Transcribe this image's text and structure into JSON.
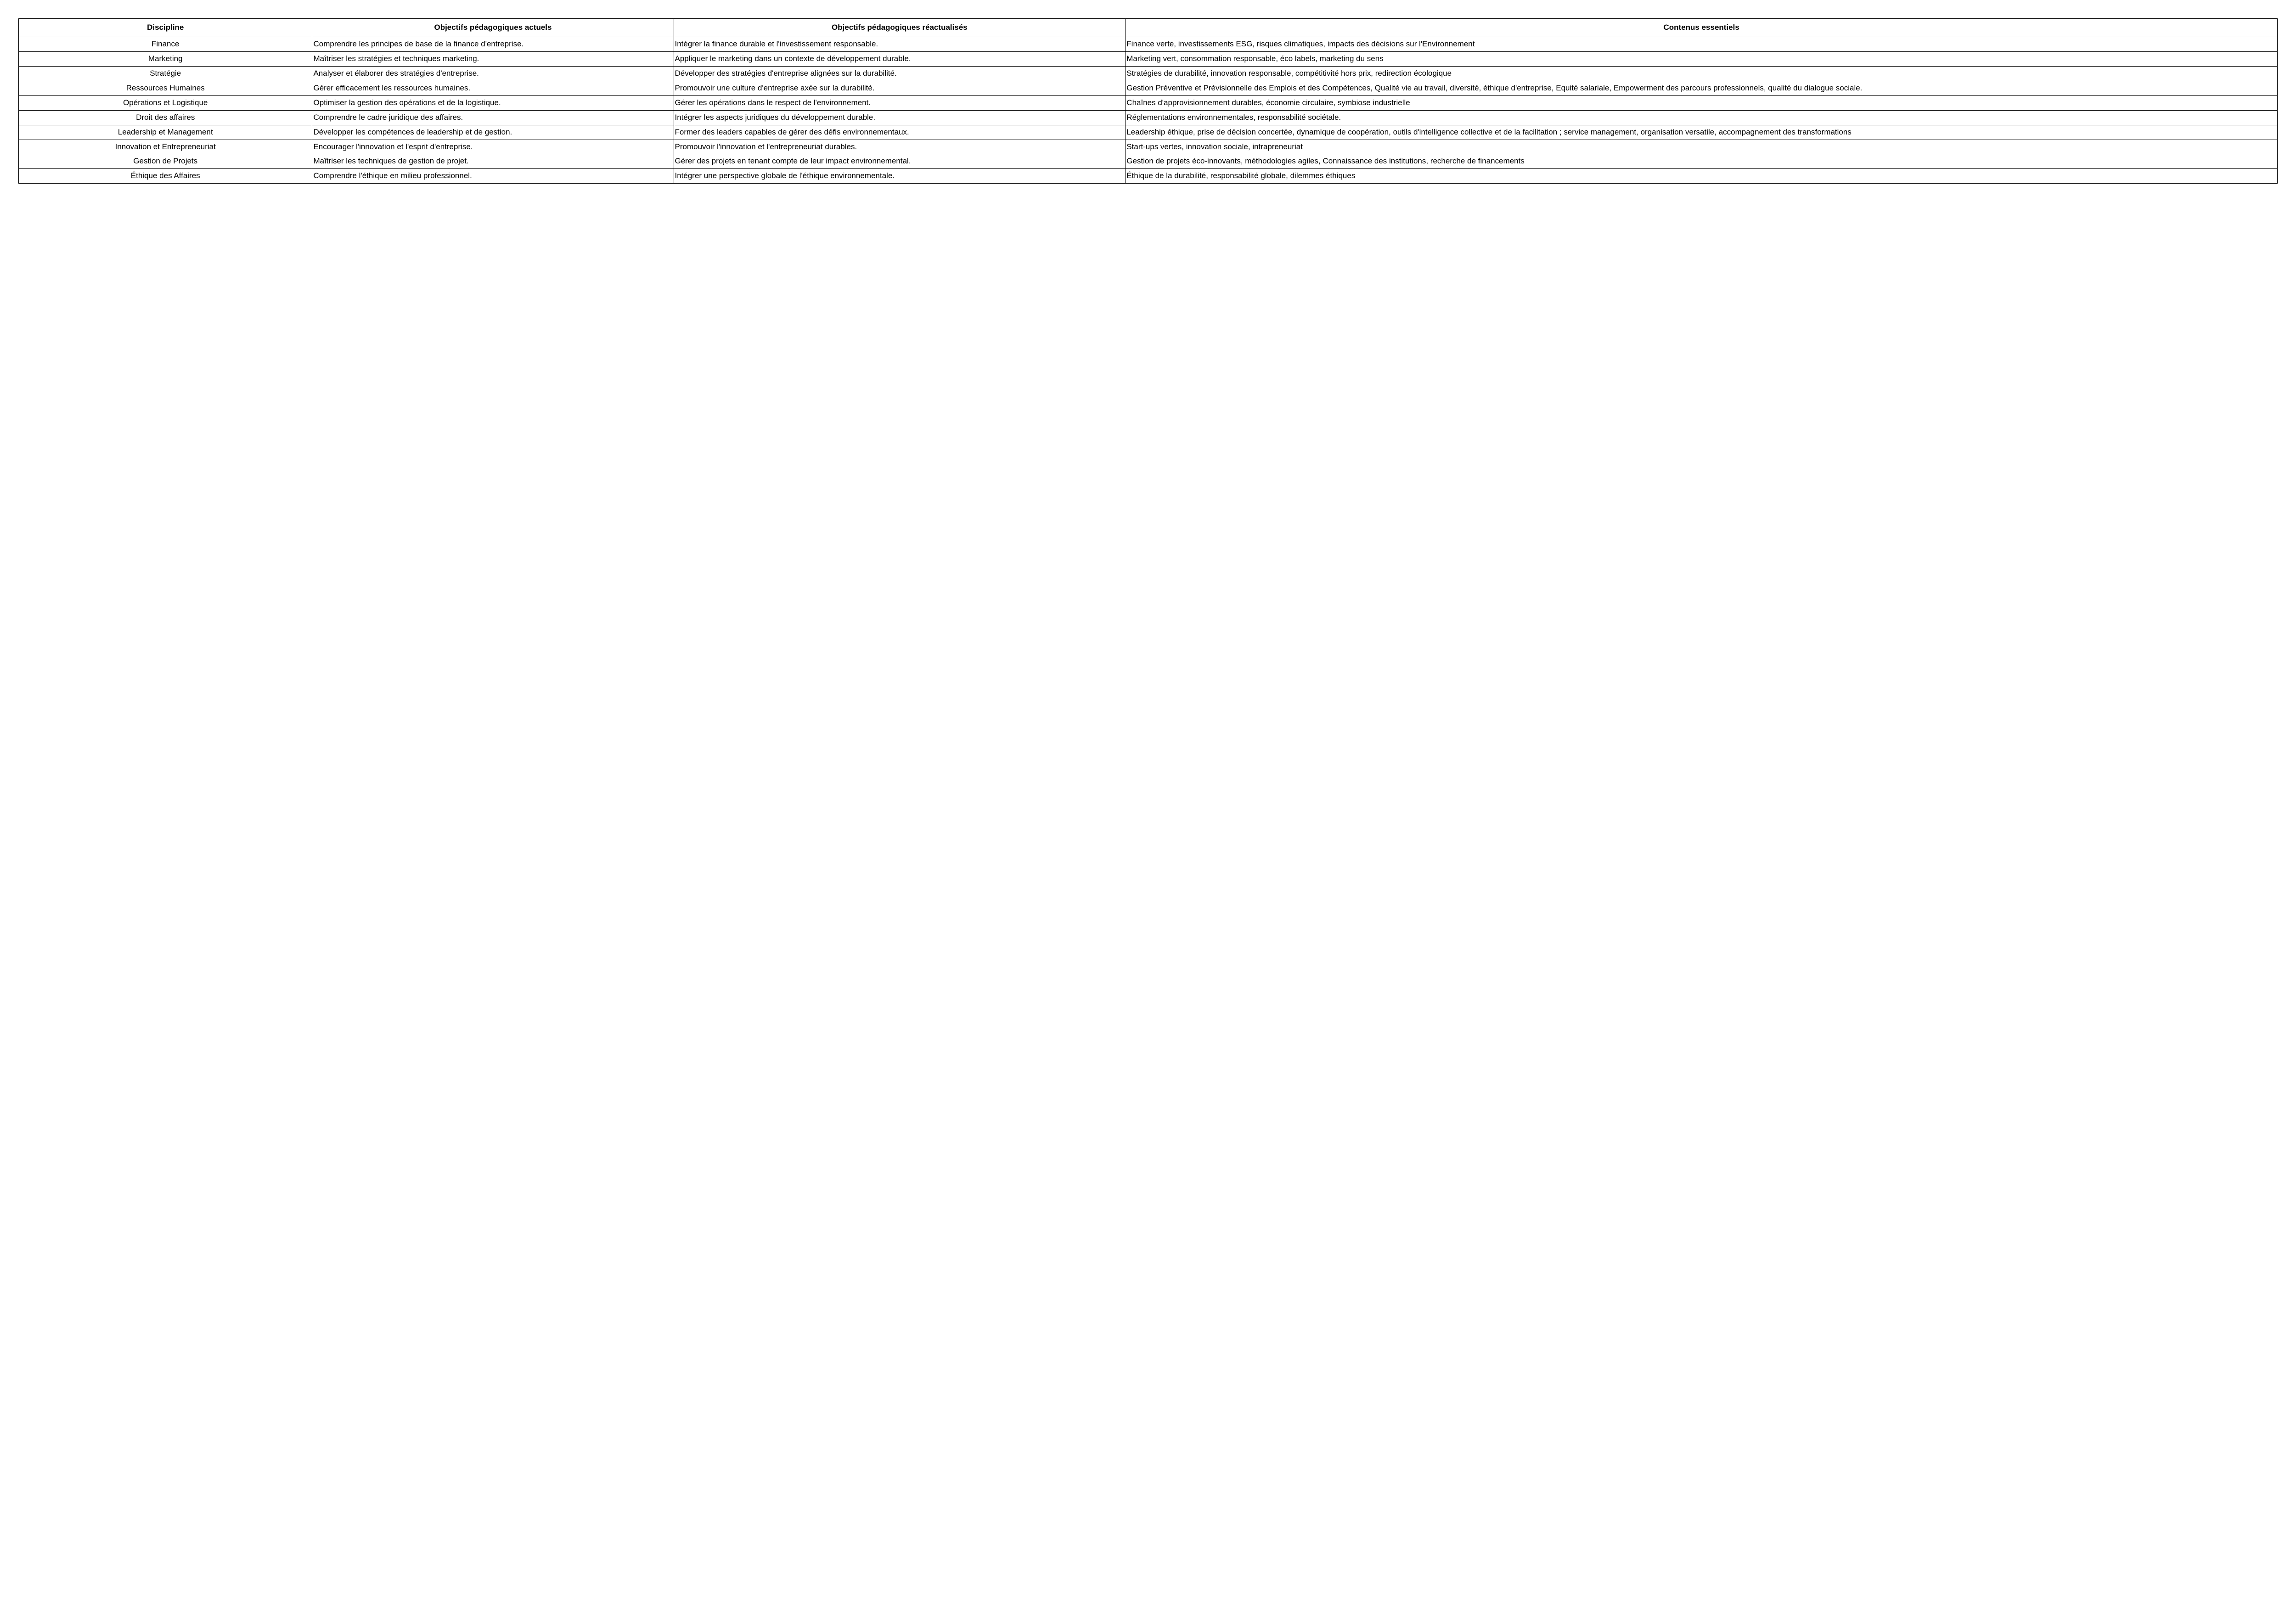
{
  "table": {
    "columns": [
      "Discipline",
      "Objectifs pédagogiques actuels",
      "Objectifs pédagogiques réactualisés",
      "Contenus essentiels"
    ],
    "rows": [
      {
        "discipline": "Finance",
        "current": "Comprendre les principes de base de la finance d'entreprise.",
        "updated": "Intégrer la finance durable et l'investissement responsable.",
        "content": "Finance verte, investissements ESG, risques climatiques, impacts des décisions sur l'Environnement"
      },
      {
        "discipline": "Marketing",
        "current": "Maîtriser les stratégies et techniques marketing.",
        "updated": "Appliquer le marketing dans un contexte de développement durable.",
        "content": "Marketing vert, consommation responsable, éco labels, marketing du sens"
      },
      {
        "discipline": "Stratégie",
        "current": "Analyser et élaborer des stratégies d'entreprise.",
        "updated": "Développer des stratégies d'entreprise alignées sur la durabilité.",
        "content": "Stratégies de durabilité, innovation responsable, compétitivité hors prix, redirection écologique"
      },
      {
        "discipline": "Ressources Humaines",
        "current": "Gérer efficacement les ressources humaines.",
        "updated": "Promouvoir une culture d'entreprise axée sur la durabilité.",
        "content": "Gestion Préventive et Prévisionnelle des Emplois et des Compétences, Qualité vie au travail, diversité, éthique d'entreprise, Equité salariale, Empowerment des parcours professionnels, qualité du dialogue sociale."
      },
      {
        "discipline": "Opérations et Logistique",
        "current": "Optimiser la gestion des opérations et de la logistique.",
        "updated": "Gérer les opérations dans le respect de l'environnement.",
        "content": "Chaînes d'approvisionnement durables, économie circulaire, symbiose industrielle"
      },
      {
        "discipline": "Droit des affaires",
        "current": "Comprendre le cadre juridique des affaires.",
        "updated": "Intégrer les aspects juridiques du développement durable.",
        "content": "Réglementations environnementales, responsabilité sociétale."
      },
      {
        "discipline": "Leadership et Management",
        "current": "Développer les compétences de leadership et de gestion.",
        "updated": "Former des leaders capables de gérer des défis environnementaux.",
        "content": "Leadership éthique, prise de décision concertée, dynamique de coopération, outils d'intelligence collective et de la facilitation ; service management, organisation versatile, accompagnement des transformations"
      },
      {
        "discipline": "Innovation et Entrepreneuriat",
        "current": "Encourager l'innovation et l'esprit d'entreprise.",
        "updated": "Promouvoir l'innovation et l'entrepreneuriat durables.",
        "content": "Start-ups vertes, innovation sociale, intrapreneuriat"
      },
      {
        "discipline": "Gestion de Projets",
        "current": "Maîtriser les techniques de gestion de projet.",
        "updated": "Gérer des projets en tenant compte de leur impact environnemental.",
        "content": "Gestion de projets éco-innovants, méthodologies agiles, Connaissance des institutions, recherche de financements"
      },
      {
        "discipline": "Éthique des Affaires",
        "current": "Comprendre l'éthique en milieu professionnel.",
        "updated": "Intégrer une perspective globale de l'éthique environnementale.",
        "content": "Éthique de la durabilité, responsabilité globale, dilemmes éthiques"
      }
    ]
  }
}
